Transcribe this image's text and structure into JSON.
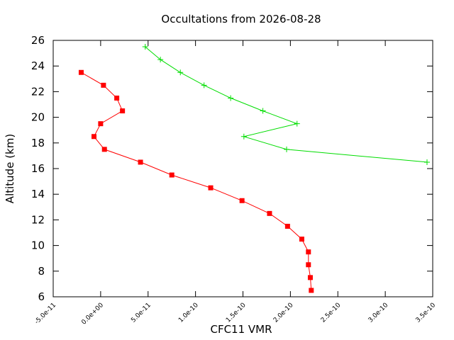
{
  "chart_data": {
    "type": "line",
    "title": "Occultations from 2026-08-28",
    "xlabel": "CFC11 VMR",
    "ylabel": "Altitude (km)",
    "xlim": [
      -5e-11,
      3.5e-10
    ],
    "ylim": [
      6,
      26
    ],
    "grid": false,
    "legend": "none",
    "x_ticks": [
      -5e-11,
      0,
      5e-11,
      1e-10,
      1.5e-10,
      2e-10,
      2.5e-10,
      3e-10,
      3.5e-10
    ],
    "x_tick_labels": [
      "-5.0e-11",
      "0.0e+00",
      "5.0e-11",
      "1.0e-10",
      "1.5e-10",
      "2.0e-10",
      "2.5e-10",
      "3.0e-10",
      "3.5e-10"
    ],
    "y_ticks": [
      6,
      8,
      10,
      12,
      14,
      16,
      18,
      20,
      22,
      24,
      26
    ],
    "y_tick_labels": [
      "6",
      "8",
      "10",
      "12",
      "14",
      "16",
      "18",
      "20",
      "22",
      "24",
      "26"
    ],
    "series": [
      {
        "color": "#ff0000",
        "marker": "square",
        "points": [
          [
            -2.05e-11,
            23.5
          ],
          [
            3e-12,
            22.5
          ],
          [
            1.7e-11,
            21.5
          ],
          [
            2.3e-11,
            20.5
          ],
          [
            0.0,
            19.5
          ],
          [
            -7e-12,
            18.5
          ],
          [
            4e-12,
            17.5
          ],
          [
            4.2e-11,
            16.5
          ],
          [
            7.5e-11,
            15.5
          ],
          [
            1.16e-10,
            14.5
          ],
          [
            1.49e-10,
            13.5
          ],
          [
            1.78e-10,
            12.5
          ],
          [
            1.97e-10,
            11.5
          ],
          [
            2.12e-10,
            10.5
          ],
          [
            2.19e-10,
            9.5
          ],
          [
            2.19e-10,
            8.5
          ],
          [
            2.21e-10,
            7.5
          ],
          [
            2.22e-10,
            6.5
          ]
        ]
      },
      {
        "color": "#00dd00",
        "marker": "plus",
        "points": [
          [
            4.7e-11,
            25.5
          ],
          [
            6.3e-11,
            24.5
          ],
          [
            8.4e-11,
            23.5
          ],
          [
            1.09e-10,
            22.5
          ],
          [
            1.37e-10,
            21.5
          ],
          [
            1.71e-10,
            20.5
          ],
          [
            2.07e-10,
            19.5
          ],
          [
            1.51e-10,
            18.5
          ],
          [
            1.96e-10,
            17.5
          ],
          [
            3.44e-10,
            16.5
          ]
        ]
      }
    ]
  }
}
